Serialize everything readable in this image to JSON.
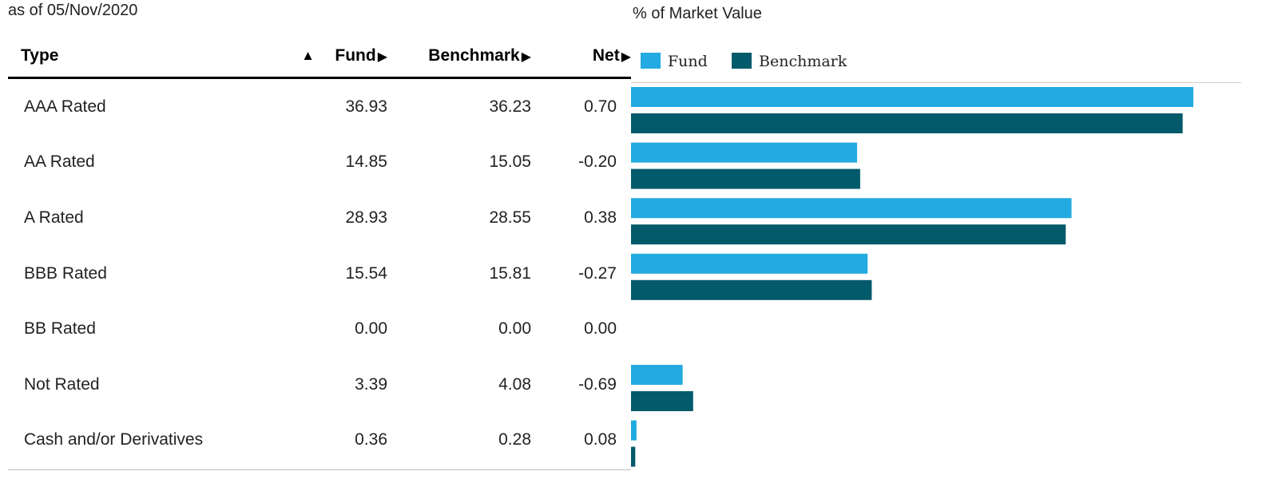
{
  "as_of": "as of 05/Nov/2020",
  "colors": {
    "fund": "#22aae1",
    "benchmark": "#025a6b",
    "negative": "#e8271c"
  },
  "table": {
    "headers": {
      "type": "Type",
      "sort_icon": "▲",
      "fund": "Fund",
      "benchmark": "Benchmark",
      "net": "Net",
      "col_arrow": "▶"
    },
    "rows": [
      {
        "type": "AAA Rated",
        "fund": "36.93",
        "benchmark": "36.23",
        "net": "0.70"
      },
      {
        "type": "AA Rated",
        "fund": "14.85",
        "benchmark": "15.05",
        "net": "-0.20"
      },
      {
        "type": "A Rated",
        "fund": "28.93",
        "benchmark": "28.55",
        "net": "0.38"
      },
      {
        "type": "BBB Rated",
        "fund": "15.54",
        "benchmark": "15.81",
        "net": "-0.27"
      },
      {
        "type": "BB Rated",
        "fund": "0.00",
        "benchmark": "0.00",
        "net": "0.00"
      },
      {
        "type": "Not Rated",
        "fund": "3.39",
        "benchmark": "4.08",
        "net": "-0.69"
      },
      {
        "type": "Cash and/or Derivatives",
        "fund": "0.36",
        "benchmark": "0.28",
        "net": "0.08"
      }
    ]
  },
  "chart_data": {
    "type": "bar",
    "orientation": "horizontal",
    "title": "% of Market Value",
    "legend_position": "top-left",
    "grid": false,
    "categories": [
      "AAA Rated",
      "AA Rated",
      "A Rated",
      "BBB Rated",
      "BB Rated",
      "Not Rated",
      "Cash and/or Derivatives"
    ],
    "series": [
      {
        "name": "Fund",
        "values": [
          36.93,
          14.85,
          28.93,
          15.54,
          0.0,
          3.39,
          0.36
        ]
      },
      {
        "name": "Benchmark",
        "values": [
          36.23,
          15.05,
          28.55,
          15.81,
          0.0,
          4.08,
          0.28
        ]
      }
    ],
    "xlim": [
      0,
      40
    ]
  }
}
